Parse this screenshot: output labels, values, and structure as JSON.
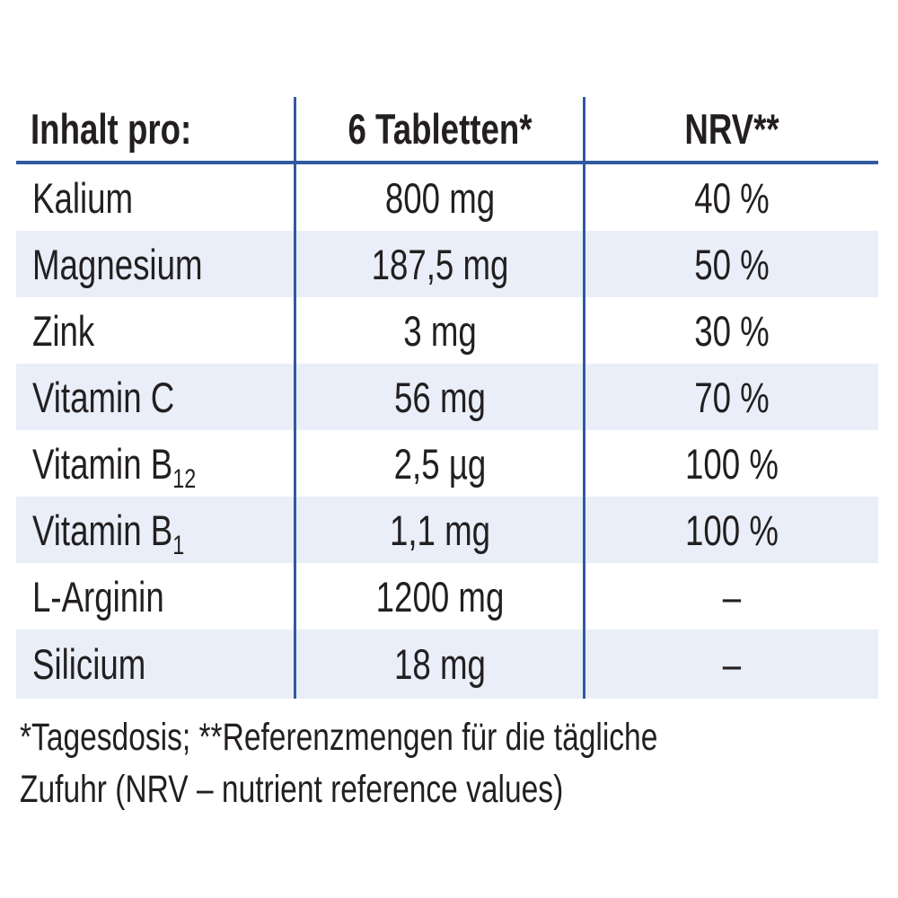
{
  "header": {
    "col1": "Inhalt pro:",
    "col2": "6 Tabletten*",
    "col3": "NRV**"
  },
  "rows": [
    {
      "name": "Kalium",
      "sub": "",
      "amount": "800 mg",
      "nrv": "40 %"
    },
    {
      "name": "Magnesium",
      "sub": "",
      "amount": "187,5 mg",
      "nrv": "50 %"
    },
    {
      "name": "Zink",
      "sub": "",
      "amount": "3 mg",
      "nrv": "30 %"
    },
    {
      "name": "Vitamin C",
      "sub": "",
      "amount": "56 mg",
      "nrv": "70 %"
    },
    {
      "name": "Vitamin B",
      "sub": "12",
      "amount": "2,5 µg",
      "nrv": "100 %"
    },
    {
      "name": "Vitamin B",
      "sub": "1",
      "amount": "1,1 mg",
      "nrv": "100 %"
    },
    {
      "name": "L-Arginin",
      "sub": "",
      "amount": "1200 mg",
      "nrv": "–"
    },
    {
      "name": "Silicium",
      "sub": "",
      "amount": "18 mg",
      "nrv": "–"
    }
  ],
  "footnote": {
    "line1": "*Tagesdosis; **Referenzmengen für die tägliche",
    "line2": "Zufuhr (NRV – nutrient reference values)"
  },
  "colors": {
    "rule": "#2f5a9e",
    "shade": "#e9eef8",
    "text": "#231f20"
  }
}
